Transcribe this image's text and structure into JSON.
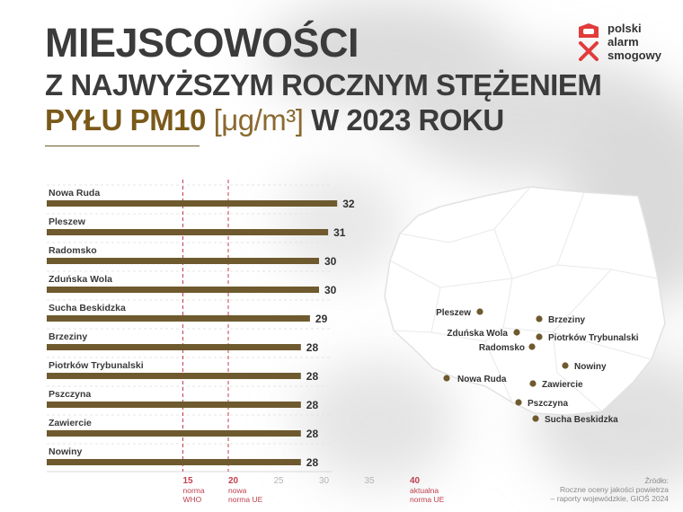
{
  "title": {
    "line1": "MIEJSCOWOŚCI",
    "line2": "Z NAJWYŻSZYM ROCZNYM STĘŻENIEM",
    "line3_highlight": "PYŁU PM10",
    "line3_unit": "[μg/m³]",
    "line3_rest": "W 2023 ROKU"
  },
  "logo": {
    "lines": [
      "polski",
      "alarm",
      "smogowy"
    ],
    "icon": "smog-alarm-logo-icon"
  },
  "colors": {
    "bar": "#6e5a2e",
    "dot": "#6e5a2e",
    "reference": "#c0404f",
    "title": "#3b3b3b",
    "accent": "#7a5a1a"
  },
  "chart_data": {
    "type": "bar",
    "orientation": "horizontal",
    "categories": [
      "Nowa Ruda",
      "Pleszew",
      "Radomsko",
      "Zduńska Wola",
      "Sucha Beskidzka",
      "Brzeziny",
      "Piotrków Trybunalski",
      "Pszczyna",
      "Zawiercie",
      "Nowiny"
    ],
    "values": [
      32,
      31,
      30,
      30,
      29,
      28,
      28,
      28,
      28,
      28
    ],
    "xticks": [
      15,
      20,
      25,
      30,
      35,
      40
    ],
    "xlim": [
      0,
      40
    ],
    "reference_lines": [
      {
        "value": 15,
        "label": [
          "norma",
          "WHO"
        ]
      },
      {
        "value": 20,
        "label": [
          "nowa",
          "norma UE"
        ]
      },
      {
        "value": 40,
        "label": [
          "aktualna",
          "norma UE"
        ]
      }
    ]
  },
  "map": {
    "cities": [
      "Pleszew",
      "Brzeziny",
      "Zduńska Wola",
      "Piotrków Trybunalski",
      "Radomsko",
      "Nowiny",
      "Nowa Ruda",
      "Zawiercie",
      "Pszczyna",
      "Sucha Beskidzka"
    ]
  },
  "source": [
    "Źródło:",
    "Roczne oceny jakości powietrza",
    "– raporty wojewódzkie, GIOŚ 2024"
  ]
}
